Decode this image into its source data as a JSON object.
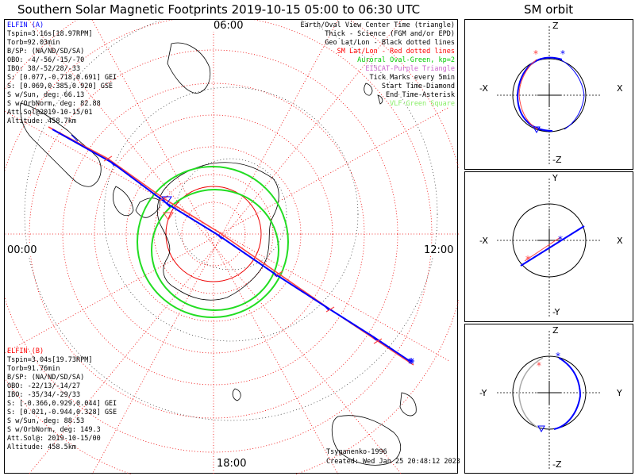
{
  "title": "Southern Solar Magnetic Footprints 2019-10-15 05:00 to 06:30 UTC",
  "orbit_title": "SM orbit",
  "clock_labels": {
    "top": "06:00",
    "left": "00:00",
    "right": "12:00",
    "bottom": "18:00"
  },
  "sat_a": {
    "name": "ELFIN (A)",
    "color": "#0000ff",
    "lines": [
      "Tspin=3.16s[18.97RPM]",
      "Torb=92.03min",
      "B/SP: (NA/ND/SD/SA)",
      "OBO: -4/-56/-15/-70",
      "IBO: 38/-52/28/-33",
      "S: [0.077,-0.718,0.691] GEI",
      "S: [0.069,0.385,0.920] GSE",
      "S w/Sun, deg: 66.13",
      "S w/OrbNorm, deg: 82.88",
      "Att.Sol@2019-10-15/01",
      "Altitude: 458.7km"
    ]
  },
  "sat_b": {
    "name": "ELFIN (B)",
    "color": "#ff0000",
    "lines": [
      "Tspin=3.04s[19.73RPM]",
      "Torb=91.76min",
      "B/SP: (NA/ND/SD/SA)",
      "OBO: -22/13/-14/27",
      "IBO: -35/34/-29/33",
      "S: [-0.366,0.929,0.044] GEI",
      "S: [0.021,-0.944,0.328] GSE",
      "S w/Sun, deg: 88.53",
      "S w/OrbNorm, deg: 149.3",
      "Att.Sol@: 2019-10-15/00",
      "Altitude: 458.5km"
    ]
  },
  "legend": [
    {
      "text": "Earth/Oval View Center Time (triangle)",
      "color": "#000000"
    },
    {
      "text": "Thick - Science (FGM and/or EPD)",
      "color": "#000000"
    },
    {
      "text": "Geo Lat/Lon - Black dotted lines",
      "color": "#000000"
    },
    {
      "text": "SM Lat/Lon - Red dotted lines",
      "color": "#ff0000"
    },
    {
      "text": "Auroral Oval-Green, kp=2",
      "color": "#00cc00"
    },
    {
      "text": "EISCAT-Purple Triangle",
      "color": "#cc66cc"
    },
    {
      "text": "Tick Marks every 5min",
      "color": "#000000"
    },
    {
      "text": "Start Time-Diamond",
      "color": "#000000"
    },
    {
      "text": "End Time-Asterisk",
      "color": "#000000"
    },
    {
      "text": "VLF-Green Square",
      "color": "#88ee66"
    }
  ],
  "credit": "Tsyganenko-1996",
  "created": "Created: Wed Jan 25 20:48:12 2023",
  "orbit_panels": [
    {
      "top": "Z",
      "left": "-X",
      "right": "X",
      "bottom": "-Z"
    },
    {
      "top": "Y",
      "left": "-X",
      "right": "X",
      "bottom": "-Y"
    },
    {
      "top": "Z",
      "left": "-Y",
      "right": "Y",
      "bottom": "-Z"
    }
  ],
  "colors": {
    "track_a": "#0000ff",
    "track_b": "#ff4444",
    "oval": "#22dd22",
    "sm_grid": "#ee0000",
    "geo_grid": "#000000",
    "orbit_gray": "#aaaaaa"
  },
  "icons": [
    "diamond-start",
    "asterisk-end",
    "triangle-view-center"
  ]
}
